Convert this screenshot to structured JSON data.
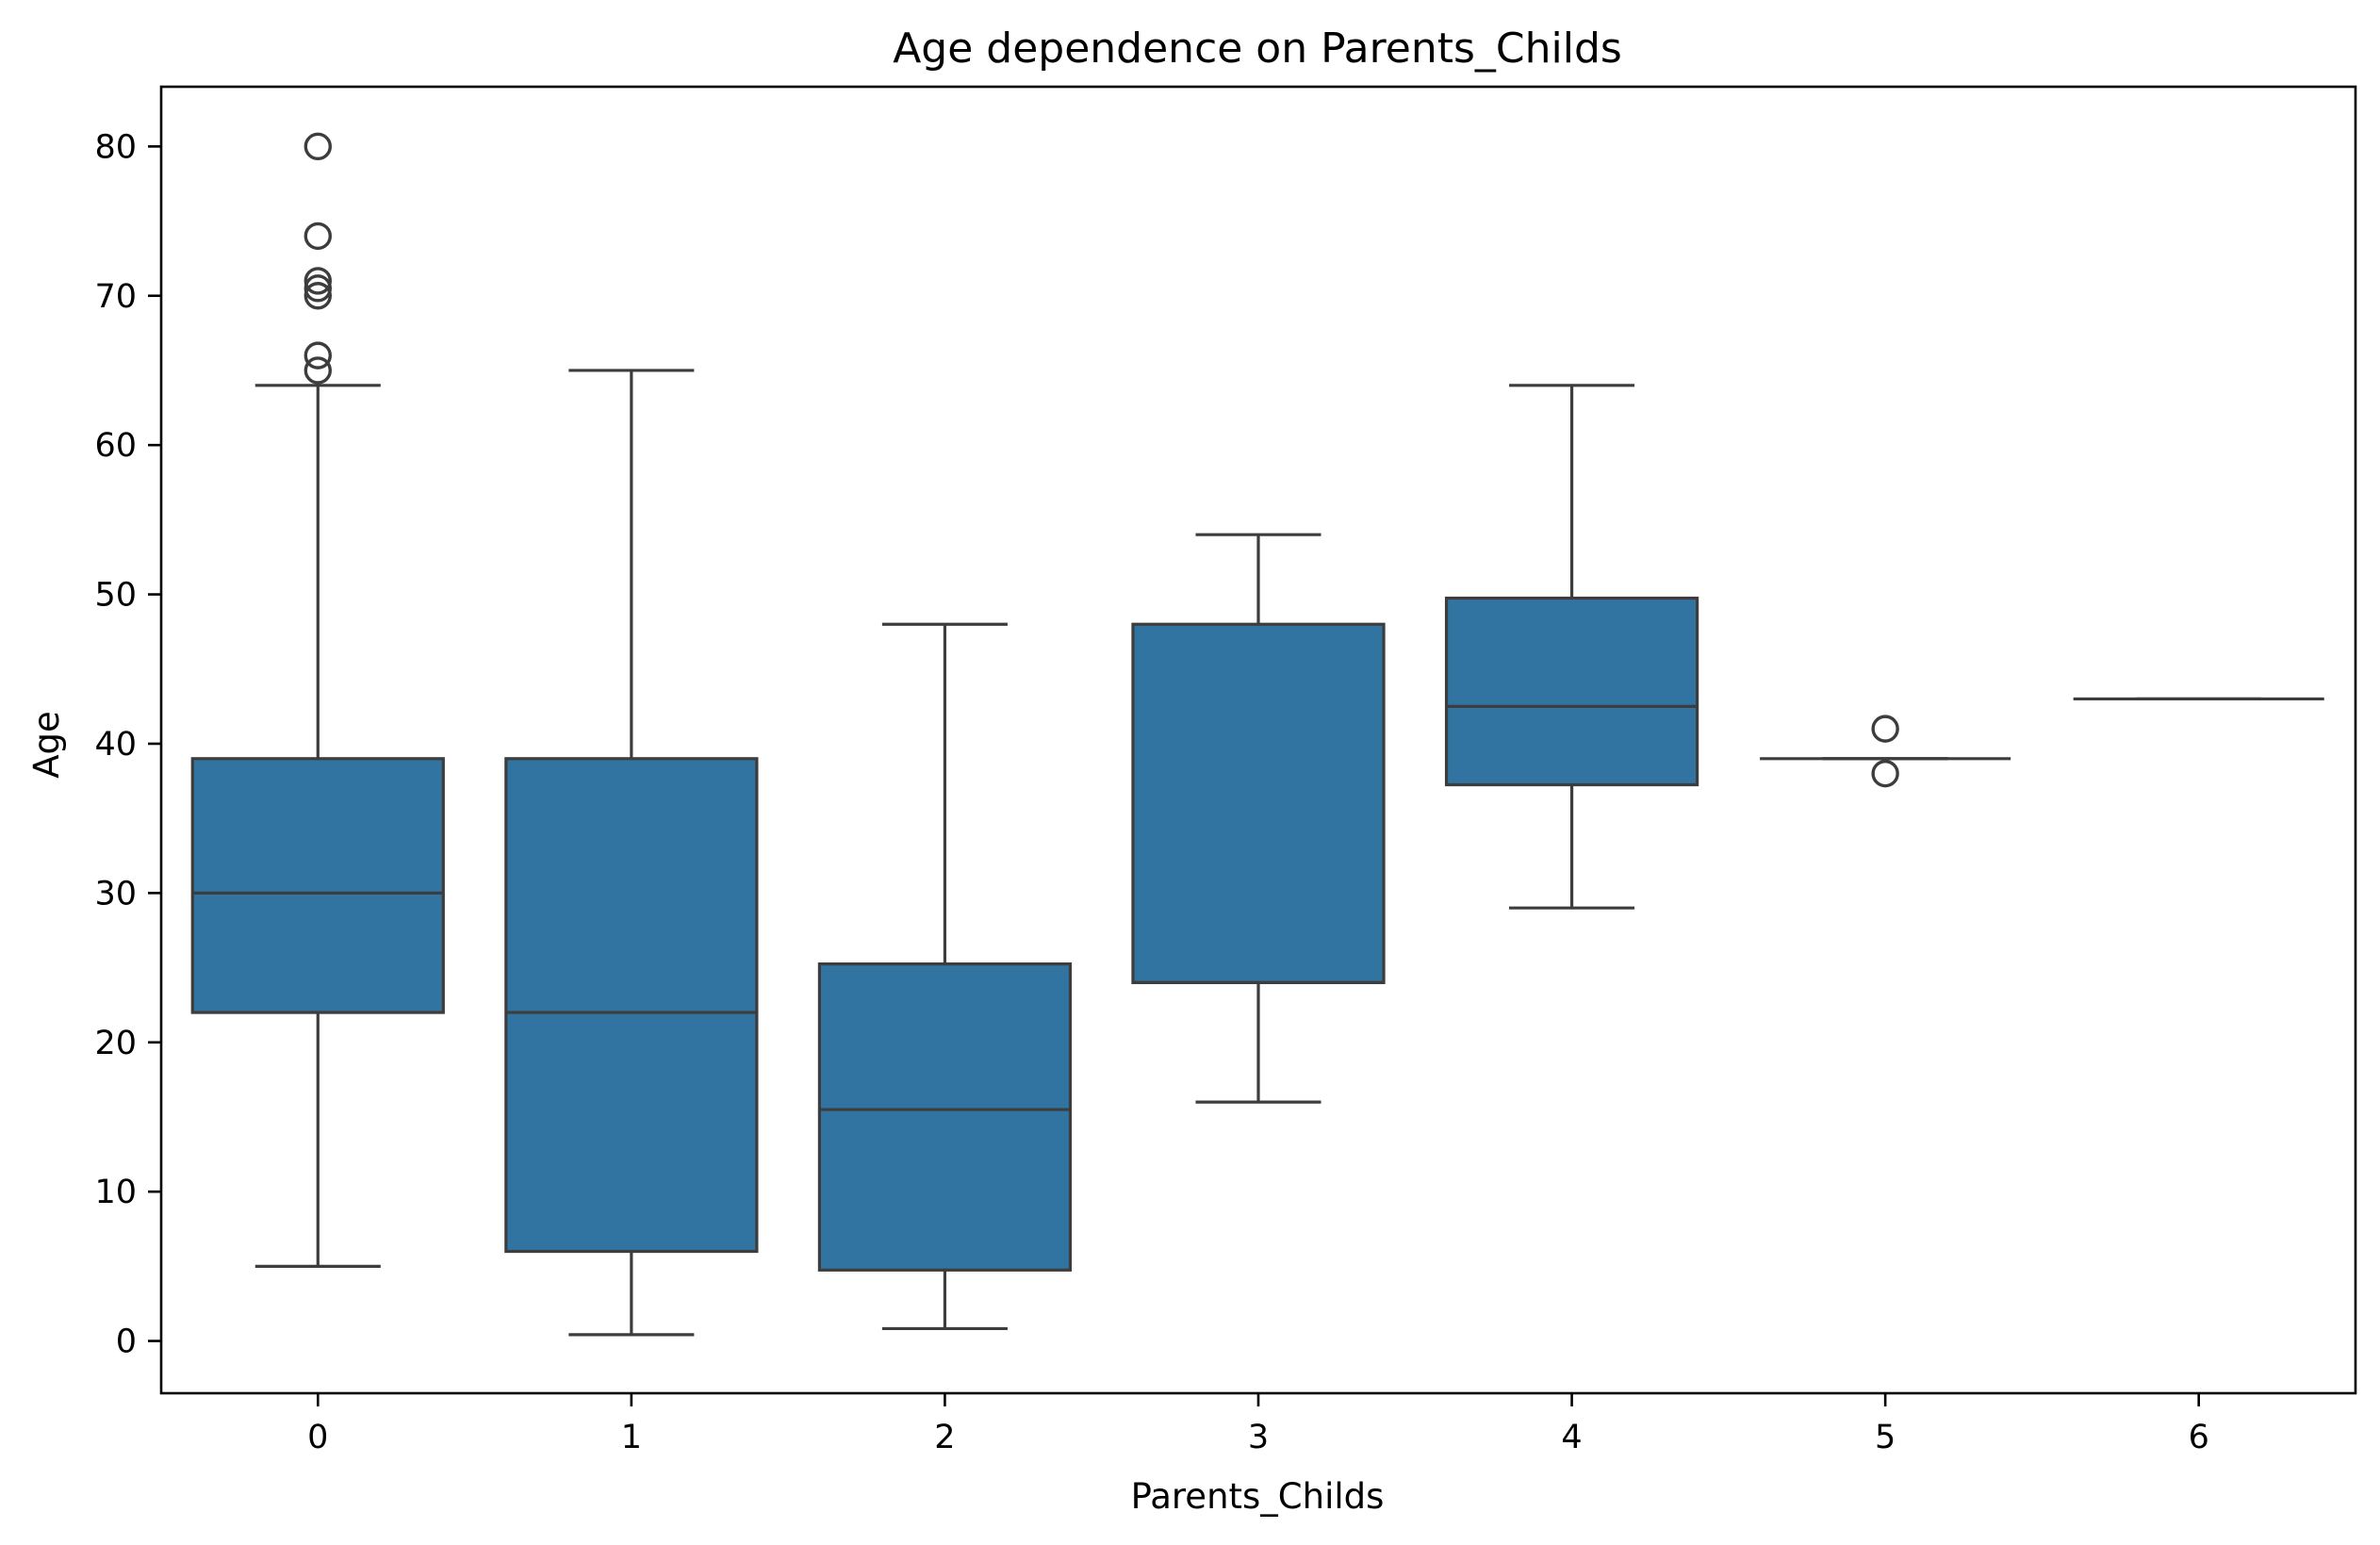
{
  "chart_data": {
    "type": "box",
    "title": "Age dependence on Parents_Childs",
    "xlabel": "Parents_Childs",
    "ylabel": "Age",
    "categories": [
      "0",
      "1",
      "2",
      "3",
      "4",
      "5",
      "6"
    ],
    "ylim": [
      -3.5,
      84
    ],
    "yticks": [
      0,
      10,
      20,
      30,
      40,
      50,
      60,
      70,
      80
    ],
    "grid": false,
    "legend": "none",
    "boxes": [
      {
        "category": "0",
        "whisker_low": 5,
        "q1": 22,
        "median": 30,
        "q3": 39,
        "whisker_high": 64,
        "outliers": [
          65,
          66,
          70,
          70.5,
          71,
          74,
          80
        ]
      },
      {
        "category": "1",
        "whisker_low": 0.42,
        "q1": 6,
        "median": 22,
        "q3": 39,
        "whisker_high": 65,
        "outliers": []
      },
      {
        "category": "2",
        "whisker_low": 0.83,
        "q1": 4.75,
        "median": 15.5,
        "q3": 25.25,
        "whisker_high": 48,
        "outliers": []
      },
      {
        "category": "3",
        "whisker_low": 16,
        "q1": 24,
        "median": 24,
        "q3": 48,
        "whisker_high": 54,
        "outliers": []
      },
      {
        "category": "4",
        "whisker_low": 29,
        "q1": 37.25,
        "median": 42.5,
        "q3": 49.75,
        "whisker_high": 64,
        "outliers": []
      },
      {
        "category": "5",
        "whisker_low": 39,
        "q1": 39,
        "median": 39,
        "q3": 39,
        "whisker_high": 39,
        "outliers": [
          41,
          38
        ]
      },
      {
        "category": "6",
        "whisker_low": 43,
        "q1": 43,
        "median": 43,
        "q3": 43,
        "whisker_high": 43,
        "outliers": []
      }
    ],
    "colors": {
      "box_fill": "#3274a1",
      "line": "#3d3d3d",
      "axis": "#000000"
    }
  }
}
